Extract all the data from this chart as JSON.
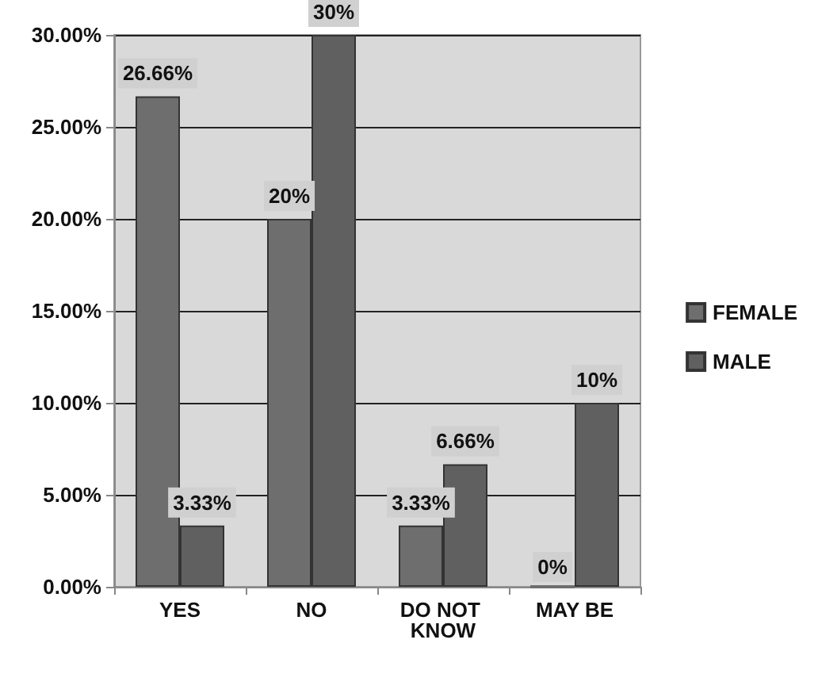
{
  "chart_data": {
    "type": "bar",
    "categories": [
      "YES",
      "NO",
      "DO NOT KNOW",
      "MAY BE"
    ],
    "series": [
      {
        "name": "FEMALE",
        "color": "#6e6e6e",
        "values": [
          26.66,
          20,
          3.33,
          0
        ],
        "value_labels": [
          "26.66%",
          "20%",
          "3.33%",
          "0%"
        ]
      },
      {
        "name": "MALE",
        "color": "#606060",
        "values": [
          3.33,
          30,
          6.66,
          10
        ],
        "value_labels": [
          "3.33%",
          "30%",
          "6.66%",
          "10%"
        ]
      }
    ],
    "ylim": [
      0,
      30
    ],
    "yticks": [
      {
        "value": 0,
        "label": "0.00%"
      },
      {
        "value": 5,
        "label": "5.00%"
      },
      {
        "value": 10,
        "label": "10.00%"
      },
      {
        "value": 15,
        "label": "15.00%"
      },
      {
        "value": 20,
        "label": "20.00%"
      },
      {
        "value": 25,
        "label": "25.00%"
      },
      {
        "value": 30,
        "label": "30.00%"
      }
    ],
    "grid": "y",
    "legend": "right"
  }
}
